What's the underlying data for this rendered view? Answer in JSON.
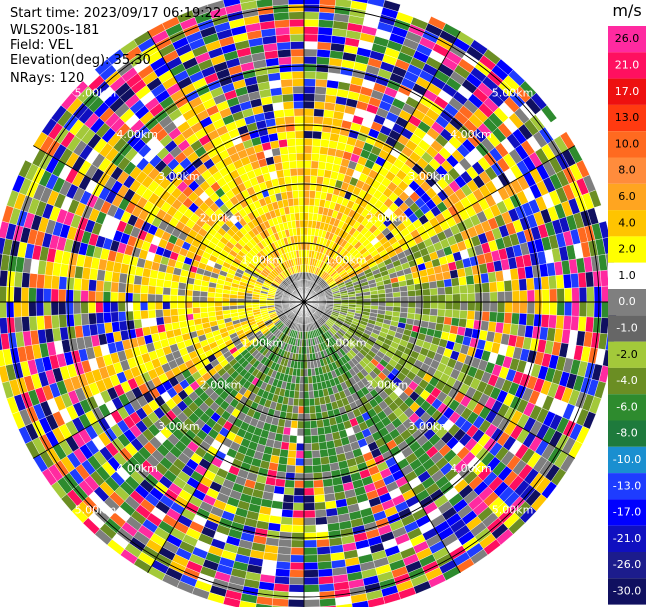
{
  "header": {
    "start_time": "Start time: 2023/09/17 06:19:22",
    "instrument": "WLS200s-181",
    "field": "Field: VEL",
    "elevation": "Elevation(deg): 35.30",
    "nrays": "NRays: 120"
  },
  "chart_data": {
    "type": "ppi",
    "field": "VEL",
    "n_rays": 120,
    "elevation_deg": 35.3,
    "range_rings_km": [
      1.0,
      2.0,
      3.0,
      4.0,
      5.0
    ],
    "range_labels": [
      "1.00km",
      "2.00km",
      "3.00km",
      "4.00km",
      "5.00km"
    ],
    "max_range_km": 5.3,
    "colorbar": {
      "unit": "m/s",
      "tick_labels": [
        "26.0",
        "21.0",
        "17.0",
        "13.0",
        "10.0",
        "8.0",
        "6.0",
        "4.0",
        "2.0",
        "1.0",
        "0.0",
        "-1.0",
        "-2.0",
        "-4.0",
        "-6.0",
        "-8.0",
        "-10.0",
        "-13.0",
        "-17.0",
        "-21.0",
        "-26.0",
        "-30.0"
      ],
      "colors": [
        "#ff2aa0",
        "#ff1060",
        "#ee1010",
        "#ff3a10",
        "#ff6a20",
        "#ff8c3c",
        "#ffa520",
        "#ffc400",
        "#ffff00",
        "#ffffff",
        "#7f7f7f",
        "#666666",
        "#a3c93a",
        "#6b8e23",
        "#2e8b2e",
        "#1e7a3c",
        "#1a8fd0",
        "#1e3cff",
        "#0000ff",
        "#1010c0",
        "#1c1c8c",
        "#101060"
      ]
    }
  }
}
